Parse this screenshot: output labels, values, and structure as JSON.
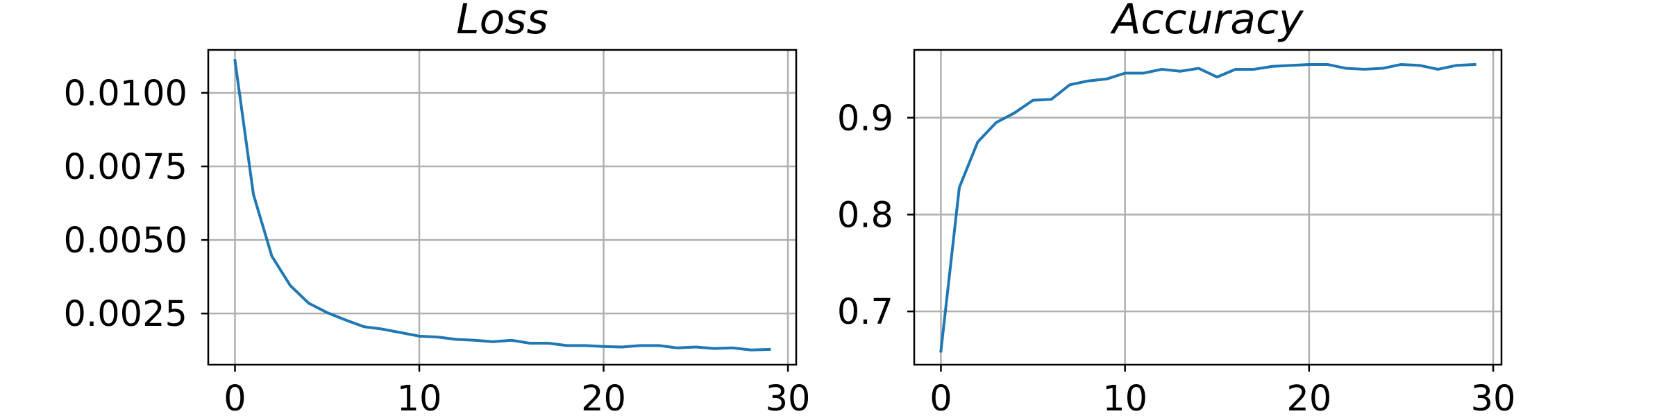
{
  "colors": {
    "series": "#1f77b4",
    "grid": "#b0b0b0",
    "axes": "#000000"
  },
  "chart_data": [
    {
      "type": "line",
      "title": "Loss",
      "xlabel": "",
      "ylabel": "",
      "grid": true,
      "xlim": [
        -1.45,
        30.45
      ],
      "ylim": [
        0.00076,
        0.01146
      ],
      "xticks": [
        0,
        10,
        20,
        30
      ],
      "xtick_labels": [
        "0",
        "10",
        "20",
        "30"
      ],
      "yticks": [
        0.0025,
        0.005,
        0.0075,
        0.01
      ],
      "ytick_labels": [
        "0.0025",
        "0.0050",
        "0.0075",
        "0.0100"
      ],
      "series": [
        {
          "x": [
            0,
            1,
            2,
            3,
            4,
            5,
            6,
            7,
            8,
            9,
            10,
            11,
            12,
            13,
            14,
            15,
            16,
            17,
            18,
            19,
            20,
            21,
            22,
            23,
            24,
            25,
            26,
            27,
            28,
            29
          ],
          "y": [
            0.0111,
            0.00655,
            0.00445,
            0.00345,
            0.00285,
            0.00253,
            0.00228,
            0.00205,
            0.00197,
            0.00185,
            0.00173,
            0.0017,
            0.00162,
            0.00159,
            0.00154,
            0.00159,
            0.00149,
            0.00149,
            0.00141,
            0.00141,
            0.00138,
            0.00136,
            0.00141,
            0.00141,
            0.00133,
            0.00136,
            0.00131,
            0.00133,
            0.00126,
            0.00128
          ]
        }
      ]
    },
    {
      "type": "line",
      "title": "Accuracy",
      "xlabel": "",
      "ylabel": "",
      "grid": true,
      "xlim": [
        -1.45,
        30.45
      ],
      "ylim": [
        0.645,
        0.97
      ],
      "xticks": [
        0,
        10,
        20,
        30
      ],
      "xtick_labels": [
        "0",
        "10",
        "20",
        "30"
      ],
      "yticks": [
        0.7,
        0.8,
        0.9
      ],
      "ytick_labels": [
        "0.7",
        "0.8",
        "0.9"
      ],
      "series": [
        {
          "x": [
            0,
            1,
            2,
            3,
            4,
            5,
            6,
            7,
            8,
            9,
            10,
            11,
            12,
            13,
            14,
            15,
            16,
            17,
            18,
            19,
            20,
            21,
            22,
            23,
            24,
            25,
            26,
            27,
            28,
            29
          ],
          "y": [
            0.659,
            0.828,
            0.875,
            0.895,
            0.905,
            0.918,
            0.919,
            0.934,
            0.938,
            0.94,
            0.946,
            0.946,
            0.95,
            0.948,
            0.951,
            0.942,
            0.95,
            0.95,
            0.953,
            0.954,
            0.955,
            0.955,
            0.951,
            0.95,
            0.951,
            0.955,
            0.954,
            0.95,
            0.954,
            0.955
          ]
        }
      ]
    }
  ]
}
